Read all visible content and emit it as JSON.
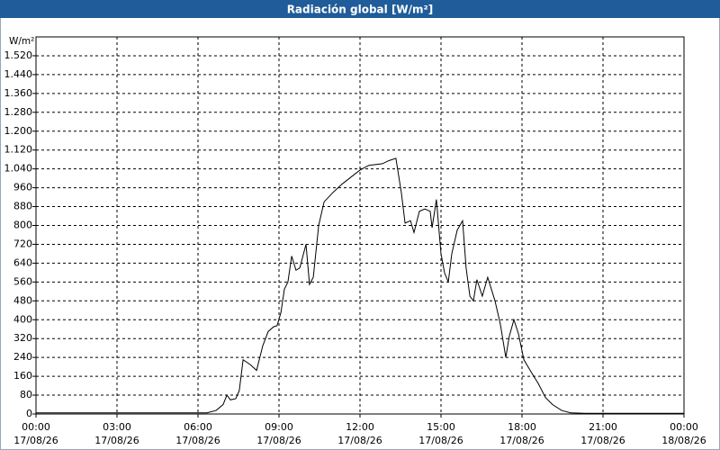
{
  "chart_data": {
    "type": "line",
    "title": "Radiación global [W/m²]",
    "y_unit": "W/m²",
    "x": [
      0,
      3,
      6,
      6.33,
      6.67,
      6.93,
      7.07,
      7.2,
      7.4,
      7.53,
      7.67,
      7.93,
      8.17,
      8.4,
      8.6,
      8.8,
      8.93,
      9.07,
      9.2,
      9.33,
      9.47,
      9.63,
      9.77,
      10.0,
      10.13,
      10.27,
      10.47,
      10.67,
      11.0,
      11.33,
      12.0,
      12.33,
      12.83,
      13.07,
      13.33,
      13.53,
      13.67,
      13.87,
      14.0,
      14.2,
      14.4,
      14.6,
      14.67,
      14.83,
      15.0,
      15.13,
      15.27,
      15.4,
      15.6,
      15.8,
      15.93,
      16.07,
      16.2,
      16.33,
      16.53,
      16.73,
      17.0,
      17.2,
      17.4,
      17.53,
      17.7,
      17.87,
      18.07,
      18.33,
      18.6,
      18.87,
      19.13,
      19.47,
      19.8,
      20.33,
      24
    ],
    "series": [
      {
        "name": "Radiación global",
        "color": "#000000",
        "values": [
          5,
          5,
          5,
          5,
          15,
          40,
          80,
          60,
          65,
          100,
          230,
          210,
          185,
          290,
          350,
          370,
          375,
          430,
          530,
          560,
          670,
          610,
          620,
          720,
          550,
          580,
          800,
          900,
          940,
          975,
          1035,
          1055,
          1062,
          1075,
          1085,
          940,
          810,
          820,
          770,
          860,
          870,
          860,
          790,
          910,
          680,
          600,
          560,
          680,
          780,
          820,
          620,
          500,
          480,
          570,
          500,
          580,
          480,
          380,
          240,
          330,
          400,
          340,
          230,
          180,
          130,
          70,
          40,
          15,
          5,
          3,
          3
        ]
      }
    ],
    "xlim": [
      0,
      24
    ],
    "xticks": [
      {
        "value": 0,
        "label": [
          "00:00",
          "17/08/26"
        ]
      },
      {
        "value": 3,
        "label": [
          "03:00",
          "17/08/26"
        ]
      },
      {
        "value": 6,
        "label": [
          "06:00",
          "17/08/26"
        ]
      },
      {
        "value": 9,
        "label": [
          "09:00",
          "17/08/26"
        ]
      },
      {
        "value": 12,
        "label": [
          "12:00",
          "17/08/26"
        ]
      },
      {
        "value": 15,
        "label": [
          "15:00",
          "17/08/26"
        ]
      },
      {
        "value": 18,
        "label": [
          "18:00",
          "17/08/26"
        ]
      },
      {
        "value": 21,
        "label": [
          "21:00",
          "17/08/26"
        ]
      },
      {
        "value": 24,
        "label": [
          "00:00",
          "18/08/26"
        ]
      }
    ],
    "ylim": [
      0,
      1600
    ],
    "yticks": [
      0,
      80,
      160,
      240,
      320,
      400,
      480,
      560,
      640,
      720,
      800,
      880,
      960,
      {
        "value": 1040,
        "label": "1.040"
      },
      {
        "value": 1120,
        "label": "1.120"
      },
      {
        "value": 1200,
        "label": "1.200"
      },
      {
        "value": 1280,
        "label": "1.280"
      },
      {
        "value": 1360,
        "label": "1.360"
      },
      {
        "value": 1440,
        "label": "1.440"
      },
      {
        "value": 1520,
        "label": "1.520"
      }
    ],
    "grid": true
  }
}
